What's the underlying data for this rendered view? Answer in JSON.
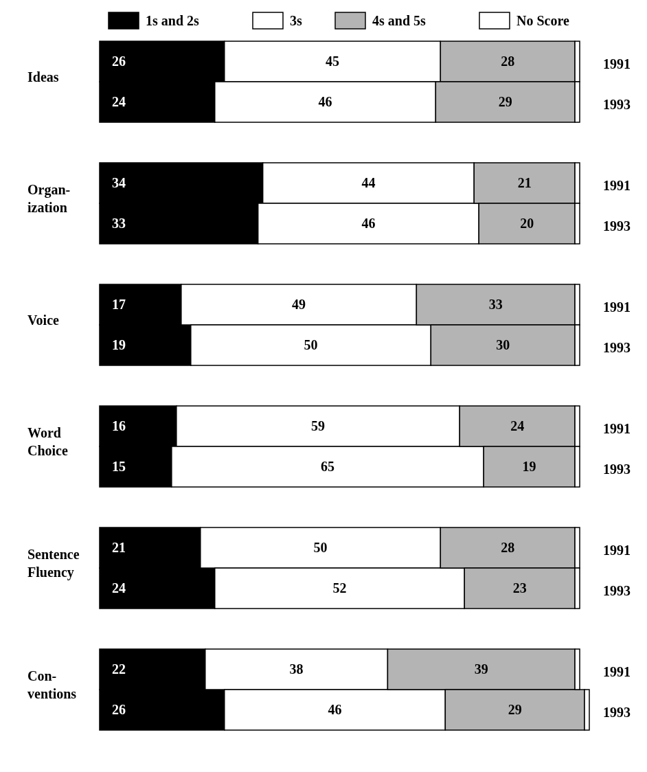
{
  "chart_data": {
    "type": "bar",
    "orientation": "horizontal",
    "stacked": true,
    "legend": "top",
    "categories": [
      "1991",
      "1993",
      null,
      "1991",
      "1993",
      null,
      "1991",
      "1993",
      null,
      "1991",
      "1993",
      null,
      "1991",
      "1993",
      null,
      "1991",
      "1993"
    ],
    "annotations": [
      "Ideas",
      "Organ-\nization",
      "Voice",
      "Word\nChoice",
      "Sentence\nFluency",
      "Con-\nventions"
    ],
    "series": [
      {
        "name": "1s and 2s",
        "color": "#000000",
        "values": [
          26,
          24,
          null,
          34,
          33,
          null,
          17,
          19,
          null,
          16,
          15,
          null,
          21,
          24,
          null,
          22,
          26
        ],
        "value_labels": [
          "26",
          "24",
          null,
          "34",
          "33",
          null,
          "17",
          "19",
          null,
          "16",
          "15",
          null,
          "21",
          "24",
          null,
          "22",
          "26"
        ]
      },
      {
        "name": "3s",
        "color": "#ffffff",
        "values": [
          45,
          46,
          null,
          44,
          46,
          null,
          49,
          50,
          null,
          59,
          65,
          null,
          50,
          52,
          null,
          38,
          46
        ],
        "value_labels": [
          "45",
          "46",
          null,
          "44",
          "46",
          null,
          "49",
          "50",
          null,
          "59",
          "65",
          null,
          "50",
          "52",
          null,
          "38",
          "46"
        ]
      },
      {
        "name": "4s and 5s",
        "color": "#b4b4b4",
        "values": [
          28,
          29,
          null,
          21,
          20,
          null,
          33,
          30,
          null,
          24,
          19,
          null,
          28,
          23,
          null,
          39,
          29
        ],
        "value_labels": [
          "28",
          "29",
          null,
          "21",
          "20",
          null,
          "33",
          "30",
          null,
          "24",
          "19",
          null,
          "28",
          "23",
          null,
          "39",
          "29"
        ]
      },
      {
        "name": "No Score",
        "color": "#ffffff",
        "values": [
          1,
          1,
          null,
          1,
          1,
          null,
          1,
          1,
          null,
          1,
          1,
          null,
          1,
          1,
          null,
          1,
          1
        ],
        "value_labels": [
          null,
          null,
          null,
          null,
          null,
          null,
          null,
          null,
          null,
          null,
          null,
          null,
          null,
          null,
          null,
          null,
          null
        ]
      }
    ]
  }
}
